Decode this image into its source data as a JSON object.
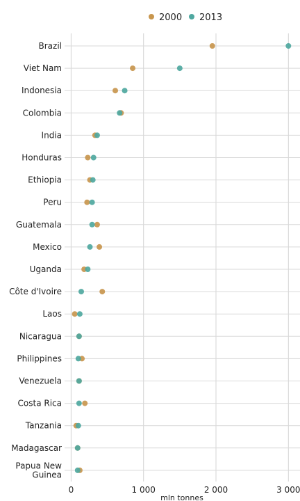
{
  "chart_data": {
    "type": "scatter",
    "title": "",
    "xlabel": "mln tonnes",
    "ylabel": "",
    "xlim": [
      -90,
      3160
    ],
    "xticks": [
      {
        "value": 0,
        "label": "0"
      },
      {
        "value": 1000,
        "label": "1 000"
      },
      {
        "value": 2000,
        "label": "2 000"
      },
      {
        "value": 3000,
        "label": "3 000"
      }
    ],
    "grid": true,
    "legend_position": "top",
    "categories": [
      "Brazil",
      "Viet Nam",
      "Indonesia",
      "Colombia",
      "India",
      "Honduras",
      "Ethiopia",
      "Peru",
      "Guatemala",
      "Mexico",
      "Uganda",
      "Côte d'Ivoire",
      "Laos",
      "Nicaragua",
      "Philippines",
      "Venezuela",
      "Costa Rica",
      "Tanzania",
      "Madagascar",
      "Papua New Guinea"
    ],
    "category_lines": [
      [
        "Brazil"
      ],
      [
        "Viet Nam"
      ],
      [
        "Indonesia"
      ],
      [
        "Colombia"
      ],
      [
        "India"
      ],
      [
        "Honduras"
      ],
      [
        "Ethiopia"
      ],
      [
        "Peru"
      ],
      [
        "Guatemala"
      ],
      [
        "Mexico"
      ],
      [
        "Uganda"
      ],
      [
        "Côte d'Ivoire"
      ],
      [
        "Laos"
      ],
      [
        "Nicaragua"
      ],
      [
        "Philippines"
      ],
      [
        "Venezuela"
      ],
      [
        "Costa Rica"
      ],
      [
        "Tanzania"
      ],
      [
        "Madagascar"
      ],
      [
        "Papua New",
        "Guinea"
      ]
    ],
    "series": [
      {
        "name": "2000",
        "color": "#c8964e",
        "values": [
          1950,
          850,
          610,
          690,
          330,
          230,
          260,
          220,
          360,
          390,
          180,
          430,
          50,
          110,
          150,
          110,
          190,
          70,
          90,
          120
        ]
      },
      {
        "name": "2013",
        "color": "#4fa8a0",
        "values": [
          3000,
          1500,
          740,
          670,
          360,
          310,
          300,
          290,
          290,
          260,
          230,
          140,
          120,
          110,
          100,
          110,
          110,
          100,
          90,
          90
        ]
      }
    ]
  }
}
